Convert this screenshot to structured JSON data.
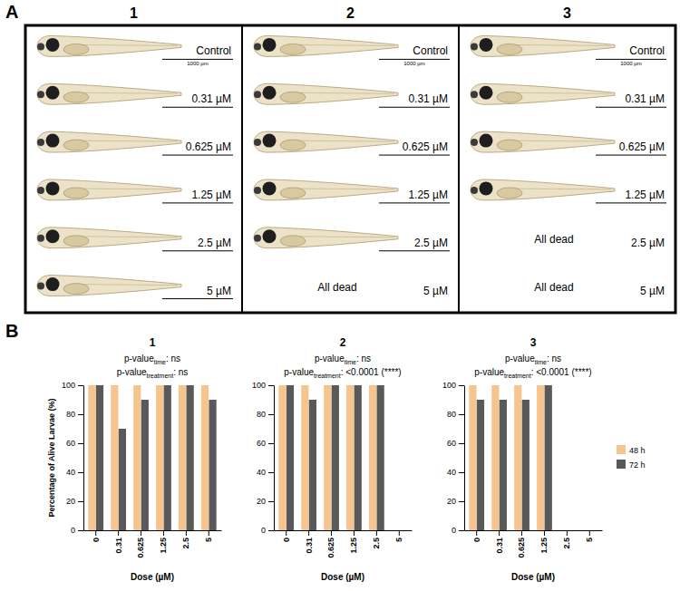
{
  "panel_labels": [
    "A",
    "B"
  ],
  "panel_a": {
    "scale_bar": "1000 µm",
    "columns": [
      {
        "title": "1",
        "rows": [
          {
            "label": "Control"
          },
          {
            "label": "0.31 µM"
          },
          {
            "label": "0.625 µM"
          },
          {
            "label": "1.25 µM"
          },
          {
            "label": "2.5 µM"
          },
          {
            "label": "5 µM"
          }
        ]
      },
      {
        "title": "2",
        "rows": [
          {
            "label": "Control"
          },
          {
            "label": "0.31 µM"
          },
          {
            "label": "0.625 µM"
          },
          {
            "label": "1.25 µM"
          },
          {
            "label": "2.5 µM"
          },
          {
            "label": "5 µM",
            "note": "All dead"
          }
        ]
      },
      {
        "title": "3",
        "rows": [
          {
            "label": "Control"
          },
          {
            "label": "0.31 µM"
          },
          {
            "label": "0.625 µM"
          },
          {
            "label": "1.25 µM"
          },
          {
            "label": "2.5 µM",
            "note": "All dead"
          },
          {
            "label": "5 µM",
            "note": "All dead"
          }
        ]
      }
    ]
  },
  "chart_data": [
    {
      "type": "bar",
      "title": "1",
      "annotations": [
        {
          "main": "p-value",
          "sub": "time",
          "rest": ": ns"
        },
        {
          "main": "p-value",
          "sub": "treatment",
          "rest": ": ns"
        }
      ],
      "x_label": "Dose (µM)",
      "y_label": "Percentage of Alive Larvae (%)",
      "categories": [
        "0",
        "0.31",
        "0.625",
        "1.25",
        "2.5",
        "5"
      ],
      "series": [
        {
          "name": "48 h",
          "color": "#f7c48e",
          "values": [
            100,
            100,
            100,
            100,
            100,
            100
          ]
        },
        {
          "name": "72 h",
          "color": "#595959",
          "values": [
            100,
            70,
            90,
            100,
            100,
            90
          ]
        }
      ],
      "ylim": [
        0,
        100
      ],
      "yticks": [
        0,
        20,
        40,
        60,
        80,
        100
      ]
    },
    {
      "type": "bar",
      "title": "2",
      "annotations": [
        {
          "main": "p-value",
          "sub": "time",
          "rest": ": ns"
        },
        {
          "main": "p-value",
          "sub": "treatment",
          "rest": ": <0.0001 (****)"
        }
      ],
      "x_label": "Dose (µM)",
      "categories": [
        "0",
        "0.31",
        "0.625",
        "1.25",
        "2.5",
        "5"
      ],
      "series": [
        {
          "name": "48 h",
          "color": "#f7c48e",
          "values": [
            100,
            100,
            100,
            100,
            100,
            0
          ]
        },
        {
          "name": "72 h",
          "color": "#595959",
          "values": [
            100,
            90,
            100,
            100,
            100,
            0
          ]
        }
      ],
      "ylim": [
        0,
        100
      ],
      "yticks": [
        0,
        20,
        40,
        60,
        80,
        100
      ]
    },
    {
      "type": "bar",
      "title": "3",
      "annotations": [
        {
          "main": "p-value",
          "sub": "time",
          "rest": ": ns"
        },
        {
          "main": "p-value",
          "sub": "treatment",
          "rest": ": <0.0001 (****)"
        }
      ],
      "x_label": "Dose (µM)",
      "categories": [
        "0",
        "0.31",
        "0.625",
        "1.25",
        "2.5",
        "5"
      ],
      "series": [
        {
          "name": "48 h",
          "color": "#f7c48e",
          "values": [
            100,
            100,
            100,
            100,
            0,
            0
          ]
        },
        {
          "name": "72 h",
          "color": "#595959",
          "values": [
            90,
            90,
            90,
            100,
            0,
            0
          ]
        }
      ],
      "ylim": [
        0,
        100
      ],
      "yticks": [
        0,
        20,
        40,
        60,
        80,
        100
      ],
      "legend": "right"
    }
  ]
}
